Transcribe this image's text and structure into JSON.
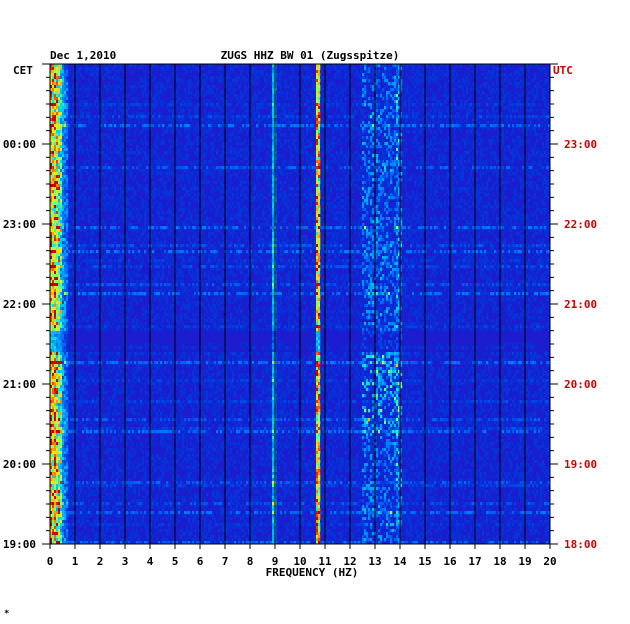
{
  "chart_data": {
    "type": "heatmap",
    "date": "Dec 1,2010",
    "title": "ZUGS HHZ BW 01 (Zugsspitze)",
    "left_axis_label": "CET",
    "right_axis_label": "UTC",
    "xlabel": "FREQUENCY (HZ)",
    "x_ticks": [
      "0",
      "1",
      "2",
      "3",
      "4",
      "5",
      "6",
      "7",
      "8",
      "9",
      "10",
      "11",
      "12",
      "13",
      "14",
      "15",
      "16",
      "17",
      "18",
      "19",
      "20"
    ],
    "xlim": [
      0,
      20
    ],
    "cet_ticks": [
      "00:00",
      "23:00",
      "22:00",
      "21:00",
      "20:00",
      "19:00"
    ],
    "utc_ticks": [
      "23:00",
      "22:00",
      "21:00",
      "20:00",
      "19:00",
      "18:00"
    ],
    "hours_span": 6,
    "colors": {
      "left_labels": "#000000",
      "right_labels": "#cc0000",
      "background": "#1d1dd0"
    },
    "features": [
      {
        "name": "low-frequency band",
        "freq_range": [
          0.1,
          0.6
        ],
        "intensity": "high"
      },
      {
        "name": "line near 9 Hz",
        "freq": 8.95,
        "intensity": "medium"
      },
      {
        "name": "line near 10.7 Hz",
        "freq": 10.7,
        "intensity": "high"
      },
      {
        "name": "band 12.5-14 Hz",
        "freq_range": [
          12.5,
          14.1
        ],
        "intensity": "medium"
      }
    ],
    "footer_mark": "*"
  }
}
